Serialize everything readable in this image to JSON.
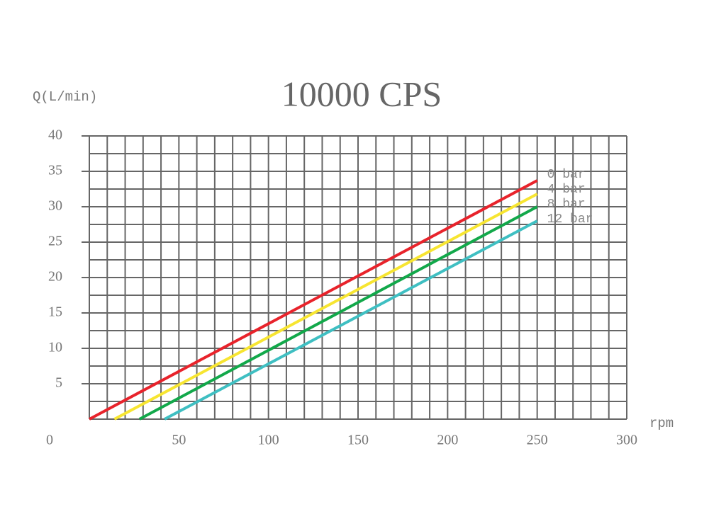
{
  "chart_data": {
    "type": "line",
    "title": "10000 CPS",
    "y_label": "Q(L/min)",
    "x_label": "rpm",
    "xlim": [
      0,
      300
    ],
    "ylim": [
      0,
      40
    ],
    "xticks": [
      0,
      50,
      100,
      150,
      200,
      250,
      300
    ],
    "yticks": [
      5,
      10,
      15,
      20,
      25,
      30,
      35,
      40
    ],
    "grid": true,
    "x_grid_step": 10,
    "y_grid_step": 2.5,
    "series": [
      {
        "name": "0 bar",
        "color": "#e8232b",
        "x": [
          0,
          250
        ],
        "values": [
          0,
          33.7
        ]
      },
      {
        "name": "4 bar",
        "color": "#f7e531",
        "x": [
          14,
          250
        ],
        "values": [
          0,
          31.8
        ]
      },
      {
        "name": "8 bar",
        "color": "#12a84a",
        "x": [
          28,
          250
        ],
        "values": [
          0,
          30
        ]
      },
      {
        "name": "12 bar",
        "color": "#3fbfc2",
        "x": [
          42,
          250
        ],
        "values": [
          0,
          28
        ]
      }
    ]
  }
}
